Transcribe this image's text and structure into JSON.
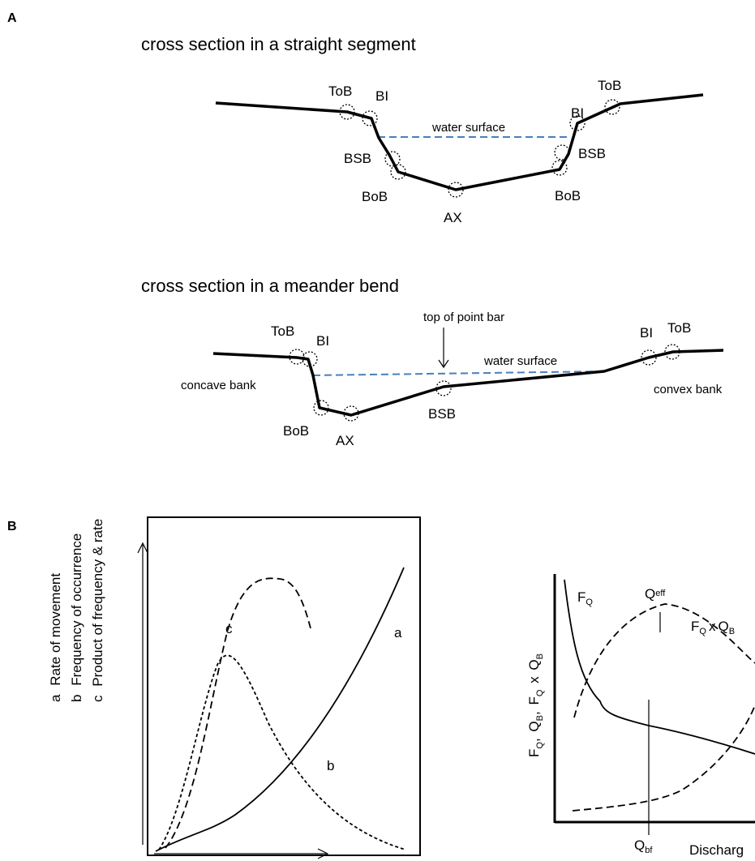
{
  "panel_a": {
    "label": "A",
    "straight": {
      "title": "cross section in a straight segment",
      "water_surface": "water surface",
      "labels": {
        "tob_left": "ToB",
        "bi_left": "BI",
        "bsb_left": "BSB",
        "bob_left": "BoB",
        "ax": "AX",
        "bi_right": "BI",
        "tob_right": "ToB",
        "bsb_right": "BSB",
        "bob_right": "BoB"
      }
    },
    "meander": {
      "title": "cross section in a meander bend",
      "top_of_point_bar": "top of point bar",
      "water_surface": "water surface",
      "concave_bank": "concave bank",
      "convex_bank": "convex bank",
      "labels": {
        "tob_left": "ToB",
        "bi_left": "BI",
        "bob": "BoB",
        "ax": "AX",
        "bsb": "BSB",
        "bi_right": "BI",
        "tob_right": "ToB"
      }
    }
  },
  "panel_b": {
    "label": "B",
    "left_plot": {
      "legend": [
        {
          "key": "a",
          "text": "Rate of movement"
        },
        {
          "key": "b",
          "text": "Frequency of occurrence"
        },
        {
          "key": "c",
          "text": "Product of frequency & rate"
        }
      ],
      "curve_labels": {
        "a": "a",
        "b": "b",
        "c": "c"
      }
    },
    "right_plot": {
      "y_label": {
        "f": "F",
        "q": "Q",
        "comma": ",",
        "b": "B",
        "x": "x"
      },
      "f_q": {
        "main": "F",
        "sub": "Q"
      },
      "q_eff": {
        "main": "Q",
        "sub": "eff"
      },
      "f_q_x_q_b": {
        "f": "F",
        "q": "Q",
        "x": "x",
        "qb": "Q",
        "b": "B"
      },
      "q_bf": {
        "main": "Q",
        "sub": "bf"
      },
      "x_label": "Discharg"
    }
  },
  "colors": {
    "water_line": "#4a7ebb",
    "line": "#000000"
  }
}
